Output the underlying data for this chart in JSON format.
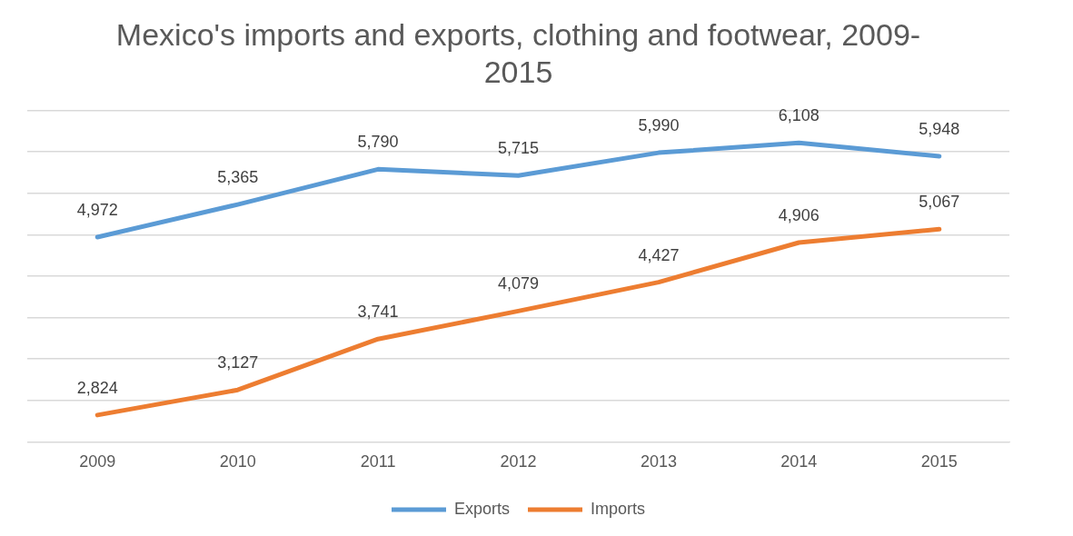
{
  "chart_data": {
    "type": "line",
    "title": "Mexico's imports and exports, clothing and footwear, 2009-2015",
    "categories": [
      "2009",
      "2010",
      "2011",
      "2012",
      "2013",
      "2014",
      "2015"
    ],
    "series": [
      {
        "name": "Exports",
        "color": "#5b9bd5",
        "values": [
          4972,
          5365,
          5790,
          5715,
          5990,
          6108,
          5948
        ],
        "value_labels": [
          "4,972",
          "5,365",
          "5,790",
          "5,715",
          "5,990",
          "6,108",
          "5,948"
        ]
      },
      {
        "name": "Imports",
        "color": "#ed7d31",
        "values": [
          2824,
          3127,
          3741,
          4079,
          4427,
          4906,
          5067
        ],
        "value_labels": [
          "2,824",
          "3,127",
          "3,741",
          "4,079",
          "4,427",
          "4,906",
          "5,067"
        ]
      }
    ],
    "tick_labels": "x",
    "grid": "y",
    "legend": "bottom",
    "marker": "none",
    "line_style": "solid"
  }
}
